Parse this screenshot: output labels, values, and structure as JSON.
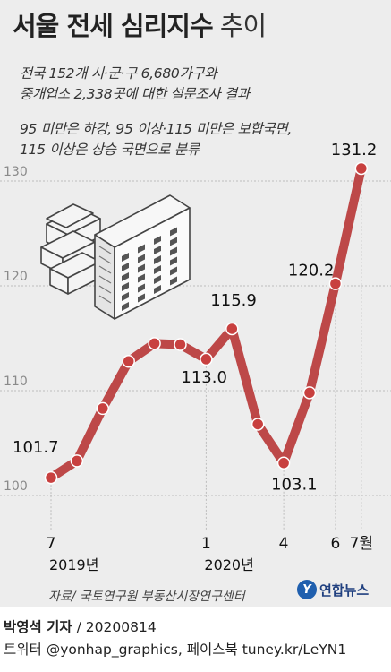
{
  "title": {
    "main": "서울 전세 심리지수",
    "sub": "추이"
  },
  "description": [
    "전국 152개 시·군·구 6,680가구와",
    "중개업소 2,338곳에 대한 설문조사 결과",
    "95 미만은 하강, 95 이상·115 미만은 보합국면,",
    "115 이상은 상승 국면으로 분류"
  ],
  "source": "자료/ 국토연구원 부동산시장연구센터",
  "logo": {
    "name": "연합뉴스",
    "icon": "yonhap-logo-icon",
    "color": "#1f5fae"
  },
  "footer": {
    "author": "박영석 기자",
    "date": "20200814",
    "social": "트위터 @yonhap_graphics, 페이스북 tuney.kr/LeYN1"
  },
  "colors": {
    "line": "#b83a3a",
    "marker": "#c8403f",
    "grid": "#bdbdbd",
    "background": "#ededed"
  },
  "illustration": "apartment-buildings-icon",
  "chart_data": {
    "type": "line",
    "x": [
      "2019-07",
      "2019-08",
      "2019-09",
      "2019-10",
      "2019-11",
      "2019-12",
      "2020-01",
      "2020-02",
      "2020-03",
      "2020-04",
      "2020-05",
      "2020-06",
      "2020-07"
    ],
    "values": [
      101.7,
      103.3,
      108.3,
      112.8,
      114.5,
      114.4,
      113.0,
      115.9,
      106.8,
      103.1,
      109.8,
      120.2,
      131.2
    ],
    "data_labels": [
      {
        "index": 0,
        "text": "101.7"
      },
      {
        "index": 6,
        "text": "113.0"
      },
      {
        "index": 7,
        "text": "115.9"
      },
      {
        "index": 9,
        "text": "103.1"
      },
      {
        "index": 11,
        "text": "120.2"
      },
      {
        "index": 12,
        "text": "131.2"
      }
    ],
    "y_ticks": [
      100,
      110,
      120,
      130
    ],
    "ylim": [
      100,
      131.2
    ],
    "x_ticks": [
      {
        "index": 0,
        "label": "7",
        "year": "2019년"
      },
      {
        "index": 6,
        "label": "1",
        "year": "2020년"
      },
      {
        "index": 9,
        "label": "4"
      },
      {
        "index": 11,
        "label": "6"
      },
      {
        "index": 12,
        "label": "7월"
      }
    ],
    "grid": "horizontal dashed",
    "title": "서울 전세 심리지수",
    "xlabel": "",
    "ylabel": ""
  }
}
